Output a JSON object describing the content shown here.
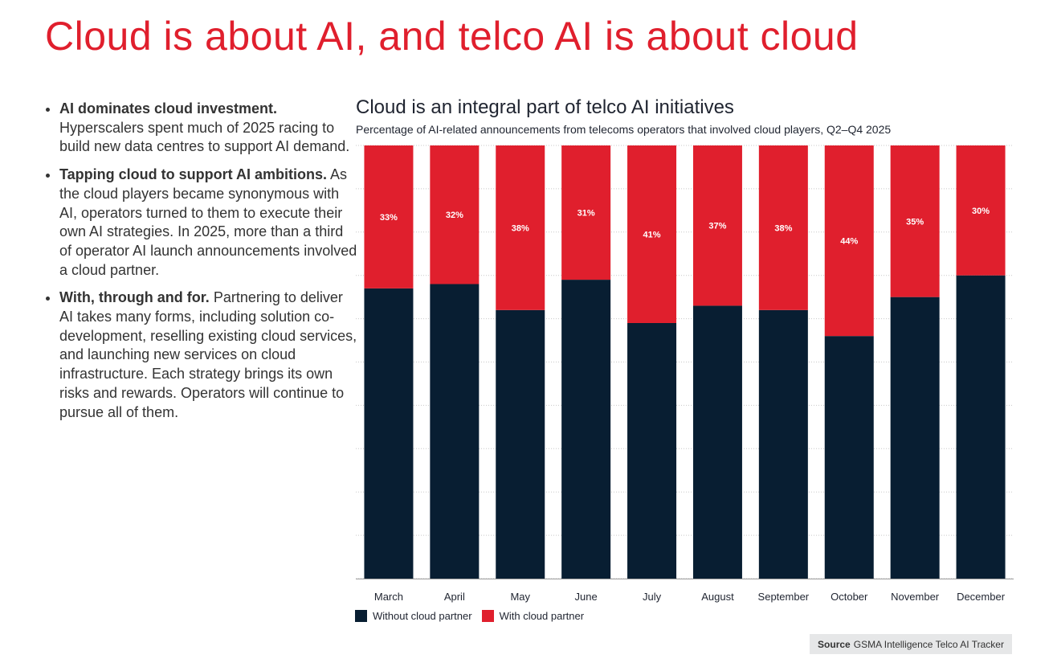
{
  "page": {
    "title": "Cloud is about AI, and telco AI is about cloud"
  },
  "bullets": [
    {
      "heading": "AI dominates cloud investment.",
      "text": "Hyperscalers spent much of 2025 racing to build new data centres to support AI demand."
    },
    {
      "heading": "Tapping cloud to support AI ambitions.",
      "text": "As the cloud players became synonymous with AI, operators turned to them to execute their own AI strategies. In 2025, more than a third of operator AI launch announcements involved a cloud partner."
    },
    {
      "heading": "With, through and for.",
      "text": "Partnering to deliver AI takes many forms, including solution co-development, reselling existing cloud services, and launching new services on cloud infrastructure. Each strategy brings its own risks and rewards. Operators will continue to pursue all of them."
    }
  ],
  "colors": {
    "accent": "#e01f2d",
    "with_cloud": "#e01f2d",
    "without_cloud": "#081e32",
    "grid": "#c8c8c8"
  },
  "chart_data": {
    "type": "bar",
    "stacked": true,
    "percent_stacked": true,
    "title": "Cloud is an integral part of telco AI initiatives",
    "subtitle": "Percentage of AI-related announcements from telecoms operators that involved cloud players, Q2–Q4 2025",
    "xlabel": "",
    "ylabel": "",
    "ylim": [
      0,
      100
    ],
    "grid": true,
    "legend_position": "bottom-left",
    "categories": [
      "March",
      "April",
      "May",
      "June",
      "July",
      "August",
      "September",
      "October",
      "November",
      "December"
    ],
    "series": [
      {
        "name": "Without cloud partner",
        "values": [
          67,
          68,
          62,
          69,
          59,
          63,
          62,
          56,
          65,
          70
        ]
      },
      {
        "name": "With cloud partner",
        "values": [
          33,
          32,
          38,
          31,
          41,
          37,
          38,
          44,
          35,
          30
        ],
        "labels": [
          "33%",
          "32%",
          "38%",
          "31%",
          "41%",
          "37%",
          "38%",
          "44%",
          "35%",
          "30%"
        ]
      }
    ]
  },
  "source": {
    "label": "Source",
    "text": "GSMA Intelligence Telco AI Tracker"
  }
}
